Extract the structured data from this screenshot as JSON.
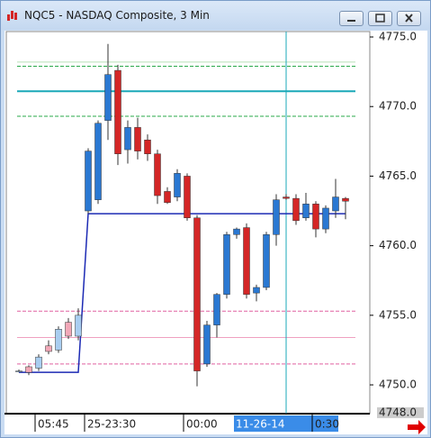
{
  "window": {
    "title": "NQC5 - NASDAQ Composite, 3 Min"
  },
  "chart_data": {
    "type": "candlestick",
    "categories": [
      null,
      null,
      "05:45",
      null,
      null,
      null,
      null,
      "25-23:30",
      null,
      null,
      null,
      null,
      null,
      null,
      null,
      null,
      null,
      "00:00",
      null,
      null,
      null,
      null,
      null,
      null,
      null,
      null,
      null,
      "11-26-14",
      null,
      null,
      "0:30",
      null,
      null,
      null
    ],
    "open": [
      4751.0,
      4751.3,
      4751.2,
      4752.8,
      4752.5,
      4754.5,
      4753.5,
      4762.5,
      4763.3,
      4769.0,
      4772.6,
      4766.9,
      4768.5,
      4767.6,
      4766.6,
      4763.9,
      4763.5,
      4765.0,
      4762.0,
      4751.5,
      4754.3,
      4756.5,
      4760.8,
      4761.3,
      4756.6,
      4757.0,
      4760.8,
      4763.5,
      4763.4,
      4762.0,
      4763.0,
      4761.2,
      4762.5,
      4763.4
    ],
    "high": [
      4751.1,
      4751.4,
      4752.2,
      4753.2,
      4754.2,
      4754.8,
      4755.5,
      4767.0,
      4769.0,
      4774.5,
      4773.0,
      4769.0,
      4769.2,
      4768.0,
      4766.9,
      4764.2,
      4765.5,
      4765.2,
      4762.2,
      4754.6,
      4756.6,
      4761.0,
      4761.3,
      4761.6,
      4757.2,
      4761.0,
      4763.7,
      4763.7,
      4763.7,
      4763.8,
      4763.2,
      4762.9,
      4764.8,
      4763.5
    ],
    "low": [
      4750.9,
      4750.7,
      4751.0,
      4752.2,
      4752.3,
      4753.3,
      4753.2,
      4762.3,
      4763.0,
      4767.6,
      4765.8,
      4765.9,
      4766.2,
      4766.1,
      4763.0,
      4763.0,
      4763.2,
      4761.8,
      4749.9,
      4751.3,
      4753.4,
      4756.2,
      4760.5,
      4756.2,
      4756.0,
      4756.8,
      4760.0,
      4763.3,
      4761.5,
      4761.8,
      4760.6,
      4760.9,
      4762.0,
      4761.9
    ],
    "close": [
      4751.0,
      4750.9,
      4752.0,
      4752.4,
      4754.0,
      4753.5,
      4755.0,
      4766.8,
      4768.8,
      4772.3,
      4766.6,
      4768.5,
      4766.8,
      4766.6,
      4763.6,
      4763.1,
      4765.2,
      4762.0,
      4751.0,
      4754.3,
      4756.5,
      4760.8,
      4761.2,
      4756.5,
      4757.0,
      4760.8,
      4763.3,
      4763.4,
      4761.8,
      4763.0,
      4761.2,
      4762.7,
      4763.5,
      4763.2
    ],
    "up_color": "#2a78d2",
    "down_color": "#d42626",
    "faded_up_color": "#a9cdf0",
    "faded_down_color": "#f2a8b8",
    "line": {
      "color": "#1c2ab4",
      "values": [
        4750.9,
        4750.9,
        4750.9,
        4750.9,
        4750.9,
        4750.9,
        4750.9,
        4762.3,
        4762.3,
        4762.3,
        4762.3,
        4762.3,
        4762.3,
        4762.3,
        4762.3,
        4762.3,
        4762.3,
        4762.3,
        4762.3,
        4762.3,
        4762.3,
        4762.3,
        4762.3,
        4762.3,
        4762.3,
        4762.3,
        4762.3,
        4762.3,
        4762.3,
        4762.3,
        4762.3,
        4762.3,
        4762.3,
        4762.3
      ]
    },
    "levels": [
      {
        "value": 4773.2,
        "color": "#b8e0b8",
        "style": "solid"
      },
      {
        "value": 4772.9,
        "color": "#2aa84a",
        "style": "dashed"
      },
      {
        "value": 4771.1,
        "color": "#1aa8b8",
        "style": "thick"
      },
      {
        "value": 4769.3,
        "color": "#2aa84a",
        "style": "dashed"
      },
      {
        "value": 4755.3,
        "color": "#e060a0",
        "style": "dashed"
      },
      {
        "value": 4753.4,
        "color": "#f0a0c0",
        "style": "solid"
      },
      {
        "value": 4751.5,
        "color": "#e060a0",
        "style": "dashed"
      }
    ],
    "crosshair_color": "#1aa8b8",
    "crosshair_y": {
      "value": 4748,
      "label": "4748.0"
    },
    "ylim": [
      4747.93,
      4775.39
    ],
    "yticks": [
      {
        "value": 4775,
        "label": "4775.0"
      },
      {
        "value": 4770,
        "label": "4770.0"
      },
      {
        "value": 4765,
        "label": "4765.0"
      },
      {
        "value": 4760,
        "label": "4760.0"
      },
      {
        "value": 4755,
        "label": "4755.0"
      },
      {
        "value": 4750,
        "label": "4750.0"
      }
    ]
  }
}
